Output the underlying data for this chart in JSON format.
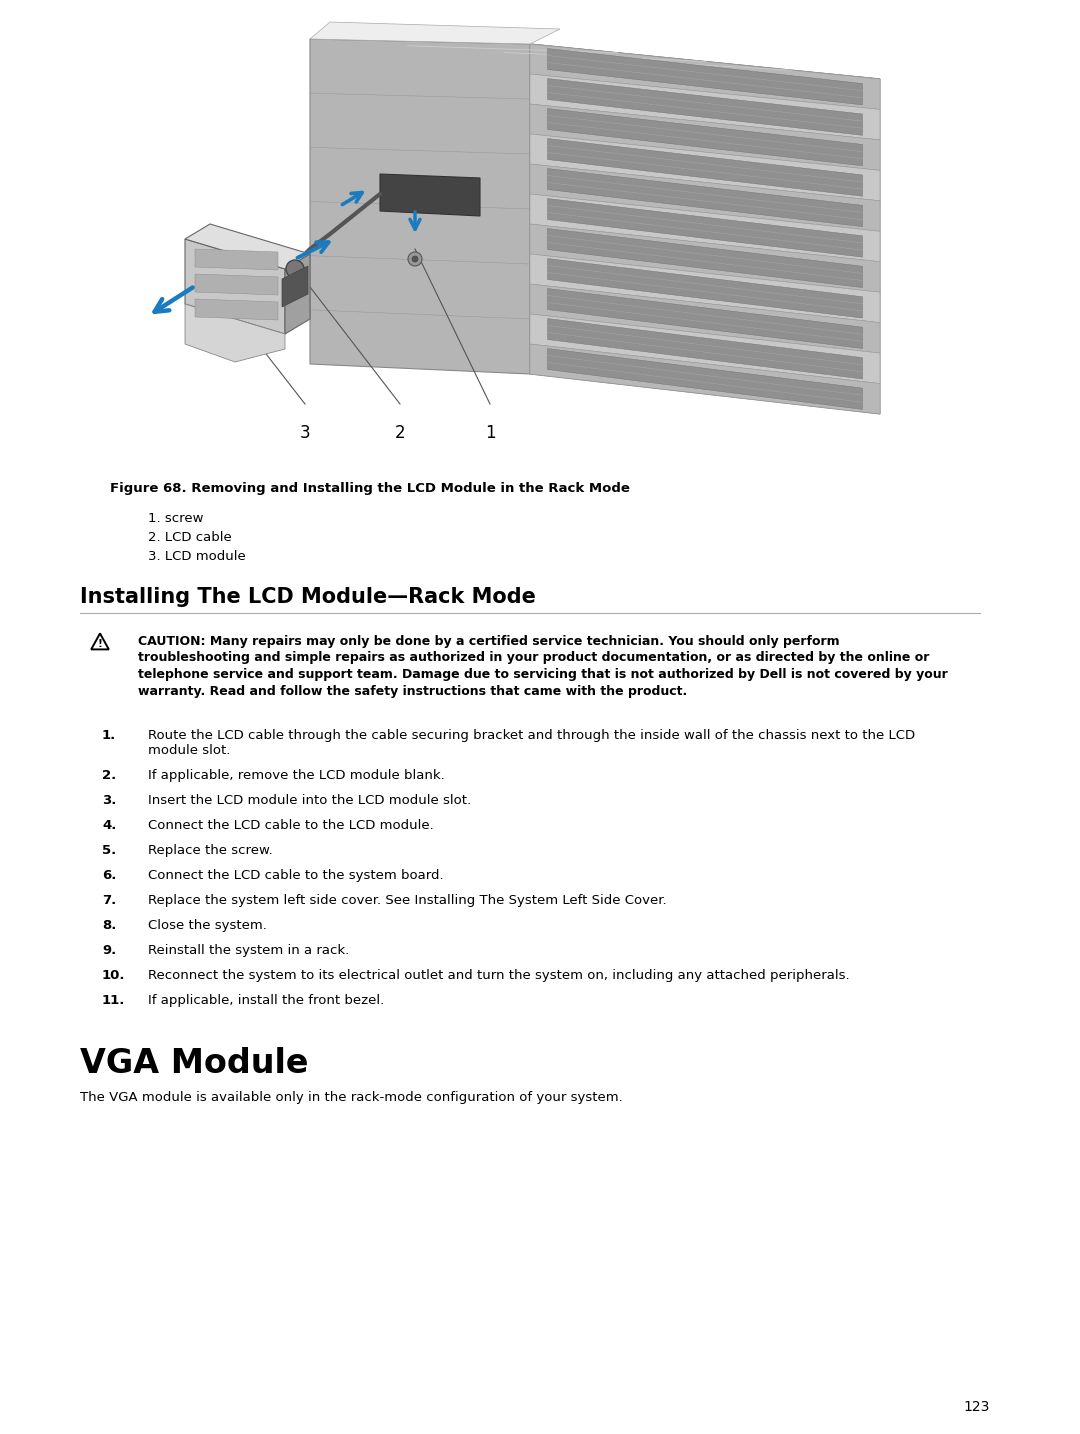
{
  "bg_color": "#ffffff",
  "page_number": "123",
  "figure_caption": "Figure 68. Removing and Installing the LCD Module in the Rack Mode",
  "figure_labels": [
    "1. screw",
    "2. LCD cable",
    "3. LCD module"
  ],
  "section_title": "Installing The LCD Module—Rack Mode",
  "caution_lines": [
    "CAUTION: Many repairs may only be done by a certified service technician. You should only perform",
    "troubleshooting and simple repairs as authorized in your product documentation, or as directed by the online or",
    "telephone service and support team. Damage due to servicing that is not authorized by Dell is not covered by your",
    "warranty. Read and follow the safety instructions that came with the product."
  ],
  "steps": [
    [
      "Route the LCD cable through the cable securing bracket and through the inside wall of the chassis next to the LCD",
      "module slot."
    ],
    [
      "If applicable, remove the LCD module blank."
    ],
    [
      "Insert the LCD module into the LCD module slot."
    ],
    [
      "Connect the LCD cable to the LCD module."
    ],
    [
      "Replace the screw."
    ],
    [
      "Connect the LCD cable to the system board."
    ],
    [
      "Replace the system left side cover. See Installing The System Left Side Cover."
    ],
    [
      "Close the system."
    ],
    [
      "Reinstall the system in a rack."
    ],
    [
      "Reconnect the system to its electrical outlet and turn the system on, including any attached peripherals."
    ],
    [
      "If applicable, install the front bezel."
    ]
  ],
  "vga_section_title": "VGA Module",
  "vga_text": "The VGA module is available only in the rack-mode configuration of your system."
}
